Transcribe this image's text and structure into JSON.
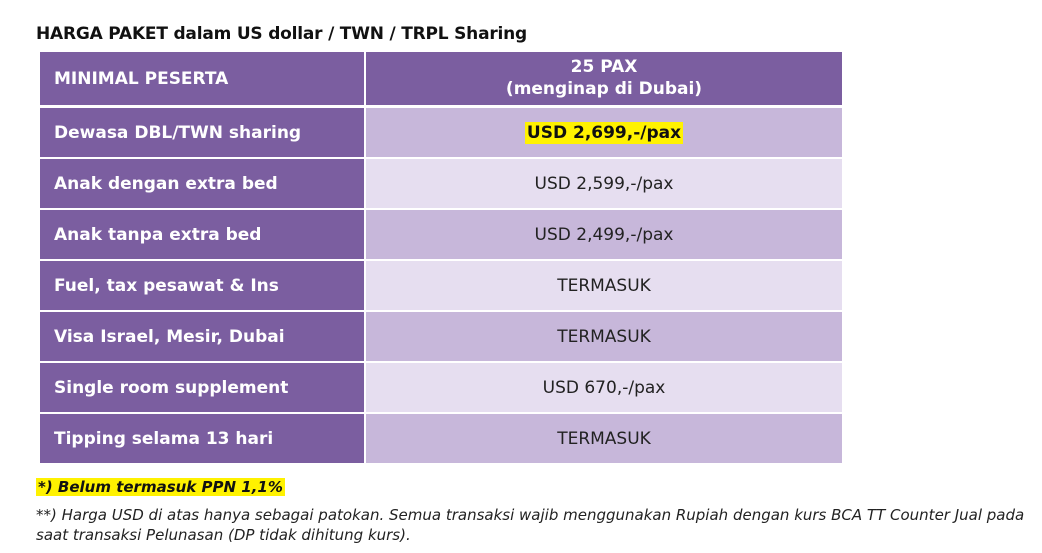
{
  "title": "HARGA PAKET dalam US dollar / TWN / TRPL Sharing",
  "table": {
    "header": {
      "label": "MINIMAL PESERTA",
      "value_line1": "25 PAX",
      "value_line2": "(menginap di Dubai)"
    },
    "rows": [
      {
        "label": "Dewasa DBL/TWN sharing",
        "value": "USD 2,699,-/pax",
        "highlighted": true
      },
      {
        "label": "Anak dengan extra bed",
        "value": "USD 2,599,-/pax"
      },
      {
        "label": "Anak tanpa extra bed",
        "value": "USD 2,499,-/pax"
      },
      {
        "label": "Fuel, tax pesawat & Ins",
        "value": "TERMASUK"
      },
      {
        "label": "Visa Israel, Mesir, Dubai",
        "value": "TERMASUK"
      },
      {
        "label": "Single room supplement",
        "value": "USD 670,-/pax"
      },
      {
        "label": "Tipping selama 13 hari",
        "value": "TERMASUK"
      }
    ]
  },
  "notes": {
    "ppn": "*) Belum termasuk PPN 1,1%",
    "usd_note": "**) Harga USD di atas hanya sebagai patokan. Semua transaksi wajib menggunakan Rupiah dengan kurs BCA TT Counter Jual pada saat transaksi Pelunasan (DP tidak dihitung kurs)."
  },
  "colors": {
    "label_bg": "#7b5ea0",
    "value_bg_dark": "#c7b7da",
    "value_bg_light": "#e6def0",
    "highlight": "#fff200"
  }
}
